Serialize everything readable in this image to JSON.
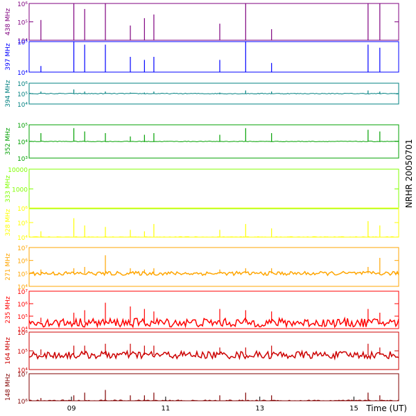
{
  "side_title": "NRHR 20050701",
  "chart_data": {
    "type": "line",
    "title": "NRHR 20050701",
    "xlabel": "Time (UT)",
    "x_range_hours": [
      8.1,
      15.95
    ],
    "x_ticks": [
      {
        "value": 9,
        "label": "09"
      },
      {
        "value": 11,
        "label": "11"
      },
      {
        "value": 13,
        "label": "13"
      },
      {
        "value": 15,
        "label": "15"
      }
    ],
    "spike_times": [
      8.35,
      9.05,
      9.28,
      9.72,
      10.25,
      10.55,
      10.75,
      12.15,
      12.7,
      13.25,
      15.3,
      15.55
    ],
    "series": [
      {
        "name": "438 MHz",
        "color": "#7f007f",
        "ylog": true,
        "ylim": [
          10000,
          1000000
        ],
        "yticks": [
          {
            "value": 10000,
            "label": "10⁴"
          },
          {
            "value": 100000,
            "label": "10⁵"
          },
          {
            "value": 1000000,
            "label": "10⁶"
          }
        ],
        "baseline": 10000,
        "noise": 0.0,
        "spikes": [
          1.1,
          3.4,
          1.7,
          2.6,
          0.8,
          1.2,
          1.4,
          0.9,
          3.0,
          0.6,
          2.8,
          2.0
        ]
      },
      {
        "name": "397 MHz",
        "color": "#0000ff",
        "ylog": true,
        "ylim": [
          10000,
          100000
        ],
        "yticks": [
          {
            "value": 10000,
            "label": "10⁴"
          },
          {
            "value": 100000,
            "label": "10⁵"
          }
        ],
        "baseline": 10000,
        "noise": 0.0,
        "spikes": [
          0.2,
          1.2,
          0.9,
          0.9,
          0.5,
          0.4,
          0.5,
          0.4,
          1.2,
          0.3,
          0.9,
          0.8
        ]
      },
      {
        "name": "394 MHz",
        "color": "#008080",
        "ylog": true,
        "ylim": [
          10000,
          1000000
        ],
        "yticks": [
          {
            "value": 10000,
            "label": "10⁴"
          },
          {
            "value": 100000,
            "label": "10⁵"
          },
          {
            "value": 1000000,
            "label": "10⁶"
          }
        ],
        "baseline": 100000,
        "noise": 0.04,
        "spikes": [
          0.2,
          0.4,
          0.2,
          0.2,
          0.1,
          0.1,
          0.2,
          0.1,
          0.3,
          0.2,
          0.3,
          0.2
        ]
      },
      {
        "name": "352 MHz",
        "color": "#00a000",
        "ylog": true,
        "ylim": [
          1000,
          100000
        ],
        "yticks": [
          {
            "value": 1000,
            "label": "10³"
          },
          {
            "value": 10000,
            "label": "10⁴"
          },
          {
            "value": 100000,
            "label": "10⁵"
          }
        ],
        "baseline": 10000,
        "noise": 0.02,
        "spikes": [
          0.5,
          0.8,
          0.6,
          0.5,
          0.3,
          0.4,
          0.5,
          0.4,
          0.8,
          0.5,
          0.7,
          0.6
        ]
      },
      {
        "name": "333 MHz",
        "color": "#80ff00",
        "ylog": true,
        "ylim": [
          100,
          10000
        ],
        "yticks": [
          {
            "value": 1000,
            "label": "1000"
          },
          {
            "value": 10000,
            "label": "10000"
          }
        ],
        "baseline": 10000,
        "noise": 0.0,
        "spikes": []
      },
      {
        "name": "328 MHz",
        "color": "#ffff00",
        "ylog": true,
        "ylim": [
          10000,
          1000000
        ],
        "yticks": [
          {
            "value": 10000,
            "label": "10⁴"
          },
          {
            "value": 100000,
            "label": "10⁵"
          },
          {
            "value": 1000000,
            "label": "10⁶"
          }
        ],
        "baseline": 10000,
        "noise": 0.03,
        "spikes": [
          0.4,
          1.3,
          0.8,
          0.7,
          0.5,
          0.4,
          0.9,
          0.5,
          0.9,
          0.6,
          1.1,
          0.8
        ]
      },
      {
        "name": "271 MHz",
        "color": "#ffa500",
        "ylog": true,
        "ylim": [
          10000,
          10000000
        ],
        "yticks": [
          {
            "value": 10000,
            "label": "10⁴"
          },
          {
            "value": 100000,
            "label": "10⁵"
          },
          {
            "value": 1000000,
            "label": "10⁶"
          },
          {
            "value": 10000000,
            "label": "10⁷"
          }
        ],
        "baseline": 100000,
        "noise": 0.15,
        "spikes": [
          0.3,
          0.4,
          0.5,
          1.4,
          0.4,
          0.3,
          0.4,
          0.3,
          0.4,
          0.4,
          0.5,
          1.2
        ]
      },
      {
        "name": "235 MHz",
        "color": "#ff0000",
        "ylog": true,
        "ylim": [
          10000,
          10000000
        ],
        "yticks": [
          {
            "value": 10000,
            "label": "10⁴"
          },
          {
            "value": 100000,
            "label": "10⁵"
          },
          {
            "value": 1000000,
            "label": "10⁶"
          },
          {
            "value": 10000000,
            "label": "10⁷"
          }
        ],
        "baseline": 30000,
        "noise": 0.35,
        "spikes": [
          0.4,
          0.8,
          1.0,
          1.6,
          1.3,
          1.1,
          0.9,
          1.1,
          1.0,
          0.9,
          1.1,
          0.8
        ]
      },
      {
        "name": "164 MHz",
        "color": "#cc0000",
        "ylog": true,
        "ylim": [
          10000,
          1000000
        ],
        "yticks": [
          {
            "value": 10000,
            "label": "10⁴"
          },
          {
            "value": 100000,
            "label": "10⁵"
          },
          {
            "value": 1000000,
            "label": "10⁶"
          }
        ],
        "baseline": 60000,
        "noise": 0.2,
        "spikes": [
          0.3,
          0.5,
          0.5,
          0.6,
          0.6,
          0.5,
          0.5,
          0.4,
          0.4,
          0.5,
          0.6,
          0.4
        ]
      },
      {
        "name": "148 MHz",
        "color": "#800000",
        "ylog": true,
        "ylim": [
          1000000,
          10000000
        ],
        "yticks": [
          {
            "value": 1000000,
            "label": "10⁶"
          },
          {
            "value": 10000000,
            "label": "10⁷"
          }
        ],
        "baseline": 1000000,
        "noise": 0.03,
        "spikes": [
          0.1,
          0.2,
          0.3,
          0.4,
          0.2,
          0.2,
          0.3,
          0.2,
          0.3,
          0.2,
          0.3,
          0.2
        ]
      }
    ]
  }
}
